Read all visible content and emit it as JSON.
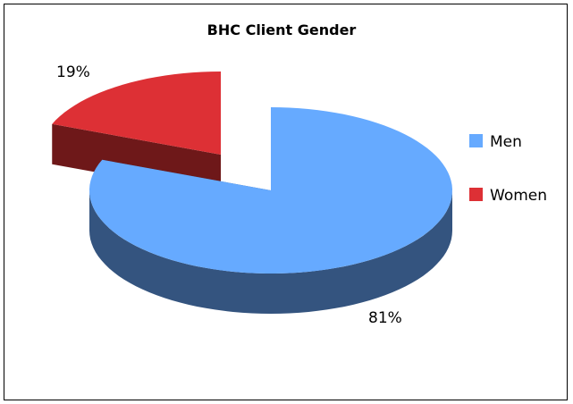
{
  "chart_data": {
    "type": "pie",
    "title": "BHC Client Gender",
    "categories": [
      "Men",
      "Women"
    ],
    "values": [
      81,
      19
    ],
    "data_labels": [
      "81%",
      "19%"
    ],
    "exploded": "Women",
    "style": "3d",
    "legend_position": "right",
    "colors": {
      "Men": "#66aaff",
      "Men_side": "#34547f",
      "Women": "#dd3035",
      "Women_side": "#6e1819"
    }
  },
  "legend": [
    {
      "label": "Men",
      "color": "#66aaff"
    },
    {
      "label": "Women",
      "color": "#dd3035"
    }
  ]
}
